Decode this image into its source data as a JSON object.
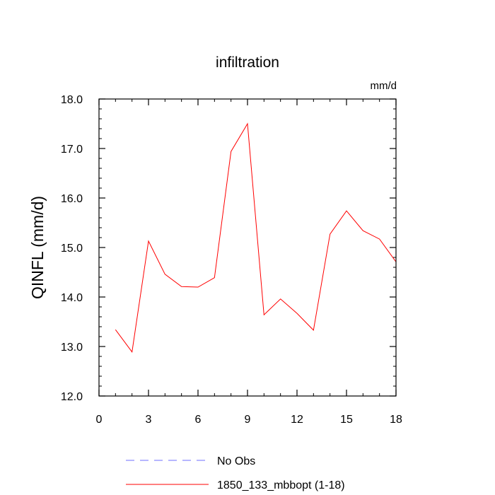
{
  "chart_data": {
    "type": "line",
    "title": "infiltration",
    "units_label": "mm/d",
    "xlabel": "",
    "ylabel": "QINFL  (mm/d)",
    "xlim": [
      0,
      18
    ],
    "ylim": [
      12.0,
      18.0
    ],
    "xticks": [
      0,
      3,
      6,
      9,
      12,
      15,
      18
    ],
    "xtick_labels": [
      "0",
      "3",
      "6",
      "9",
      "12",
      "15",
      "18"
    ],
    "yticks": [
      12.0,
      13.0,
      14.0,
      15.0,
      16.0,
      17.0,
      18.0
    ],
    "ytick_labels": [
      "12.0",
      "13.0",
      "14.0",
      "15.0",
      "16.0",
      "17.0",
      "18.0"
    ],
    "grid": false,
    "legend_position": "bottom",
    "series": [
      {
        "name": "1850_133_mbbopt (1-18)",
        "color": "#ff0000",
        "style": "solid",
        "x": [
          1,
          2,
          3,
          4,
          5,
          6,
          7,
          8,
          9,
          10,
          11,
          12,
          13,
          14,
          15,
          16,
          17,
          18
        ],
        "y": [
          13.34,
          12.89,
          15.13,
          14.46,
          14.21,
          14.2,
          14.39,
          16.94,
          17.5,
          13.64,
          13.96,
          13.67,
          13.33,
          15.27,
          15.74,
          15.34,
          15.17,
          14.71
        ]
      }
    ],
    "legend": [
      {
        "label": "No Obs",
        "color": "#6f6fff",
        "style": "dashed"
      },
      {
        "label": "1850_133_mbbopt (1-18)",
        "color": "#ff0000",
        "style": "solid"
      }
    ]
  }
}
